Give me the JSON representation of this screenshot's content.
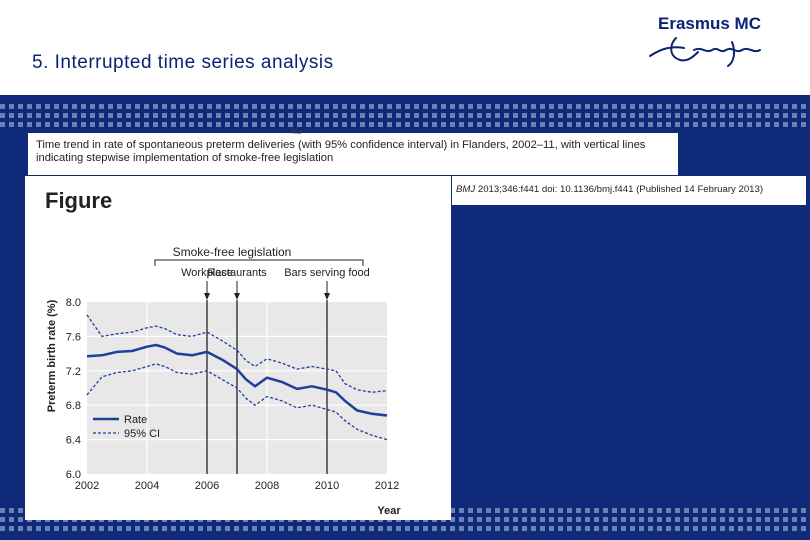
{
  "slide": {
    "title": "5. Interrupted time series analysis",
    "logo_text": "Erasmus MC"
  },
  "caption": {
    "ghost_label": "Year",
    "text": "Time trend in rate of spontaneous preterm deliveries (with 95% confidence interval) in Flanders, 2002–11, with vertical lines indicating stepwise implementation of smoke-free legislation"
  },
  "citation": {
    "journal": "BMJ",
    "text": "2013;346:f441 doi: 10.1136/bmj.f441 (Published 14 February 2013)"
  },
  "figure": {
    "heading": "Figure"
  },
  "chart_data": {
    "type": "line",
    "ylabel": "Preterm birth rate (%)",
    "xlabel": "Year",
    "xlim": [
      2002,
      2012
    ],
    "ylim": [
      6.0,
      8.0
    ],
    "x_ticks": [
      2002,
      2004,
      2006,
      2008,
      2010,
      2012
    ],
    "y_ticks": [
      6.0,
      6.4,
      6.8,
      7.2,
      7.6,
      8.0
    ],
    "y_tick_labels": [
      "6.0",
      "6.4",
      "6.8",
      "7.2",
      "7.6",
      "8.0"
    ],
    "grid": true,
    "legend_placement": "bottom-left",
    "legislation_header": "Smoke-free legislation",
    "interventions": [
      {
        "label": "Workplace",
        "x": 2006.0
      },
      {
        "label": "Restaurants",
        "x": 2007.0
      },
      {
        "label": "Bars serving food",
        "x": 2010.0
      }
    ],
    "colors": {
      "rate": "#1f3f9a",
      "ci": "#1f3f9a",
      "plot_bg": "#e8e8e8",
      "vline": "#222222"
    },
    "series": [
      {
        "name": "Rate",
        "style": "solid",
        "x": [
          2002,
          2002.5,
          2003,
          2003.5,
          2004,
          2004.3,
          2004.6,
          2005,
          2005.5,
          2006,
          2006.5,
          2007,
          2007.3,
          2007.6,
          2008,
          2008.5,
          2009,
          2009.5,
          2010,
          2010.3,
          2010.6,
          2011,
          2011.5,
          2012
        ],
        "y": [
          7.37,
          7.38,
          7.42,
          7.43,
          7.48,
          7.5,
          7.47,
          7.4,
          7.38,
          7.42,
          7.33,
          7.22,
          7.1,
          7.02,
          7.12,
          7.07,
          6.99,
          7.02,
          6.98,
          6.95,
          6.85,
          6.74,
          6.7,
          6.68
        ]
      },
      {
        "name": "95% CI",
        "style": "dashed",
        "x": [
          2002,
          2002.5,
          2003,
          2003.5,
          2004,
          2004.3,
          2004.6,
          2005,
          2005.5,
          2006,
          2006.5,
          2007,
          2007.3,
          2007.6,
          2008,
          2008.5,
          2009,
          2009.5,
          2010,
          2010.3,
          2010.6,
          2011,
          2011.5,
          2012
        ],
        "y": [
          7.85,
          7.6,
          7.63,
          7.65,
          7.7,
          7.72,
          7.69,
          7.62,
          7.6,
          7.65,
          7.55,
          7.44,
          7.32,
          7.25,
          7.34,
          7.29,
          7.22,
          7.25,
          7.22,
          7.2,
          7.05,
          6.98,
          6.95,
          6.97
        ]
      },
      {
        "name": "",
        "style": "dashed",
        "x": [
          2002,
          2002.5,
          2003,
          2003.5,
          2004,
          2004.3,
          2004.6,
          2005,
          2005.5,
          2006,
          2006.5,
          2007,
          2007.3,
          2007.6,
          2008,
          2008.5,
          2009,
          2009.5,
          2010,
          2010.3,
          2010.6,
          2011,
          2011.5,
          2012
        ],
        "y": [
          6.92,
          7.13,
          7.18,
          7.2,
          7.25,
          7.28,
          7.25,
          7.18,
          7.16,
          7.2,
          7.1,
          7.0,
          6.88,
          6.8,
          6.9,
          6.85,
          6.77,
          6.8,
          6.75,
          6.72,
          6.62,
          6.52,
          6.45,
          6.4
        ]
      }
    ]
  }
}
